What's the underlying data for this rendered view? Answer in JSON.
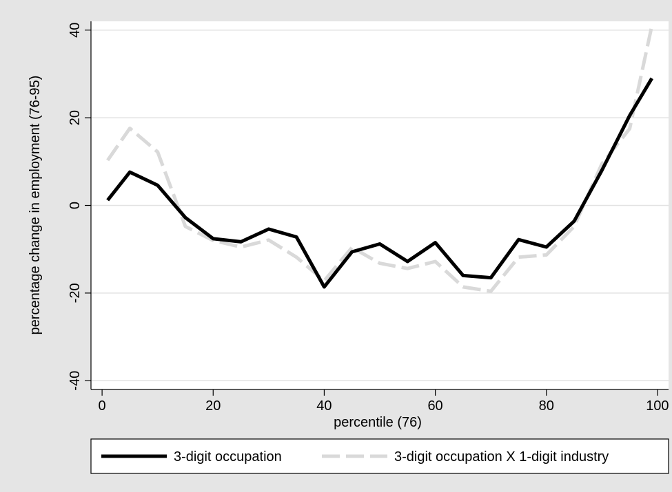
{
  "chart_data": {
    "type": "line",
    "title": "",
    "xlabel": "percentile (76)",
    "ylabel": "percentage change in employment (76-95)",
    "xlim": [
      -2,
      102
    ],
    "ylim": [
      -42,
      42
    ],
    "xticks": [
      0,
      20,
      40,
      60,
      80,
      100
    ],
    "yticks": [
      -40,
      -20,
      0,
      20,
      40
    ],
    "grid": "horizontal",
    "legend_position": "bottom",
    "colors": {
      "outer_background": "#e5e5e5",
      "plot_background": "#ffffff",
      "gridline": "#e2e2e2",
      "series_1": "#000000",
      "series_2": "#d9d9d9"
    },
    "series": [
      {
        "name": "3-digit occupation",
        "style": "solid",
        "points": [
          [
            1,
            1.2
          ],
          [
            5,
            7.6
          ],
          [
            10,
            4.6
          ],
          [
            15,
            -2.8
          ],
          [
            20,
            -7.6
          ],
          [
            25,
            -8.3
          ],
          [
            30,
            -5.4
          ],
          [
            35,
            -7.2
          ],
          [
            40,
            -18.6
          ],
          [
            45,
            -10.6
          ],
          [
            50,
            -8.8
          ],
          [
            55,
            -12.8
          ],
          [
            60,
            -8.5
          ],
          [
            65,
            -16
          ],
          [
            70,
            -16.5
          ],
          [
            75,
            -7.8
          ],
          [
            80,
            -9.5
          ],
          [
            85,
            -3.6
          ],
          [
            90,
            8
          ],
          [
            95,
            20.5
          ],
          [
            99,
            29
          ]
        ]
      },
      {
        "name": "3-digit occupation X 1-digit industry",
        "style": "dashed",
        "points": [
          [
            1,
            10.3
          ],
          [
            5,
            17.6
          ],
          [
            10,
            12.2
          ],
          [
            15,
            -4.8
          ],
          [
            20,
            -8
          ],
          [
            25,
            -9.5
          ],
          [
            30,
            -7.9
          ],
          [
            35,
            -11.8
          ],
          [
            40,
            -17.2
          ],
          [
            45,
            -9.6
          ],
          [
            50,
            -13.2
          ],
          [
            55,
            -14.4
          ],
          [
            60,
            -12.8
          ],
          [
            65,
            -18.6
          ],
          [
            70,
            -19.6
          ],
          [
            75,
            -11.8
          ],
          [
            80,
            -11.3
          ],
          [
            85,
            -4.8
          ],
          [
            90,
            9.5
          ],
          [
            95,
            17.5
          ],
          [
            99,
            41
          ]
        ]
      }
    ]
  }
}
